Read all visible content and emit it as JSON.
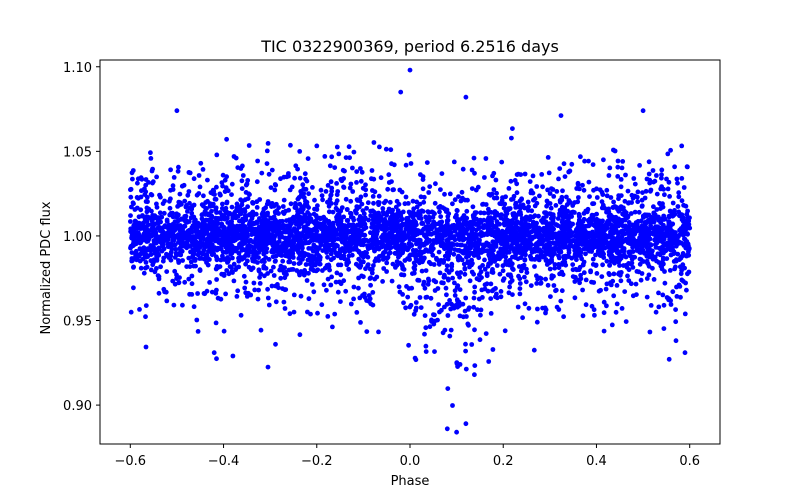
{
  "chart_data": {
    "type": "scatter",
    "title": "TIC 0322900369, period 6.2516 days",
    "xlabel": "Phase",
    "ylabel": "Normalized PDC flux",
    "xlim": [
      -0.665,
      0.665
    ],
    "ylim": [
      0.877,
      1.104
    ],
    "xticks": [
      -0.6,
      -0.4,
      -0.2,
      0.0,
      0.2,
      0.4,
      0.6
    ],
    "xtick_labels": [
      "−0.6",
      "−0.4",
      "−0.2",
      "0.0",
      "0.2",
      "0.4",
      "0.6"
    ],
    "yticks": [
      0.9,
      0.95,
      1.0,
      1.05,
      1.1
    ],
    "ytick_labels": [
      "0.90",
      "0.95",
      "1.00",
      "1.05",
      "1.10"
    ],
    "grid": false,
    "marker_color": "#0000ff",
    "series": [
      {
        "name": "flux",
        "n_points": 5000,
        "x_range": [
          -0.6,
          0.6
        ],
        "baseline": 1.0,
        "scatter_sigma_core": 0.008,
        "scatter_sigma_wide": 0.022,
        "transit_center_phase": 0.08,
        "transit_depth": 0.035,
        "transit_halfwidth_phase": 0.12,
        "notable_points": [
          {
            "x": 0.0,
            "y": 1.098
          },
          {
            "x": -0.02,
            "y": 1.085
          },
          {
            "x": 0.12,
            "y": 1.082
          },
          {
            "x": 0.5,
            "y": 1.074
          },
          {
            "x": -0.5,
            "y": 1.074
          },
          {
            "x": 0.1,
            "y": 0.884
          },
          {
            "x": 0.08,
            "y": 0.886
          },
          {
            "x": 0.12,
            "y": 0.889
          },
          {
            "x": -0.38,
            "y": 0.929
          },
          {
            "x": -0.42,
            "y": 0.931
          },
          {
            "x": 0.59,
            "y": 0.931
          }
        ]
      }
    ]
  }
}
